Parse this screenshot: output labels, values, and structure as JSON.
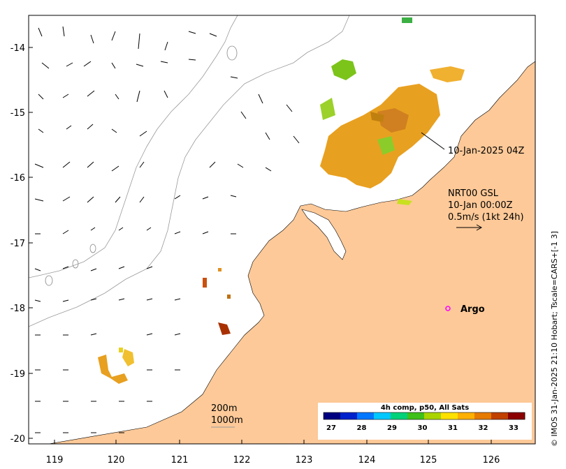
{
  "map": {
    "x_ticks": [
      "119",
      "120",
      "121",
      "122",
      "123",
      "124",
      "125",
      "126"
    ],
    "y_ticks": [
      "-14",
      "-15",
      "-16",
      "-17",
      "-18",
      "-19",
      "-20"
    ],
    "land_color": "#fdc998",
    "ocean_color": "#ffffff"
  },
  "annotations": {
    "pass_time": "10-Jan-2025 04Z",
    "current_product": "NRT00 GSL",
    "current_time": "10-Jan 00:00Z",
    "current_scale": "0.5m/s (1kt 24h)",
    "argo_label": "Argo",
    "depth_200": "200m",
    "depth_1000": "1000m"
  },
  "colorbar": {
    "title": "4h comp, p50, All Sats",
    "ticks": [
      "27",
      "28",
      "29",
      "30",
      "31",
      "32",
      "33"
    ],
    "colors": [
      "#00007f",
      "#0022cc",
      "#0077ff",
      "#00c8ff",
      "#00d27a",
      "#40c01a",
      "#aad400",
      "#ffe100",
      "#ffb000",
      "#e67b00",
      "#c04000",
      "#8b0000"
    ]
  },
  "credit": "© IMOS 31-Jan-2025 21:10 Hobart; Tscale=CARS+[-1 3]"
}
